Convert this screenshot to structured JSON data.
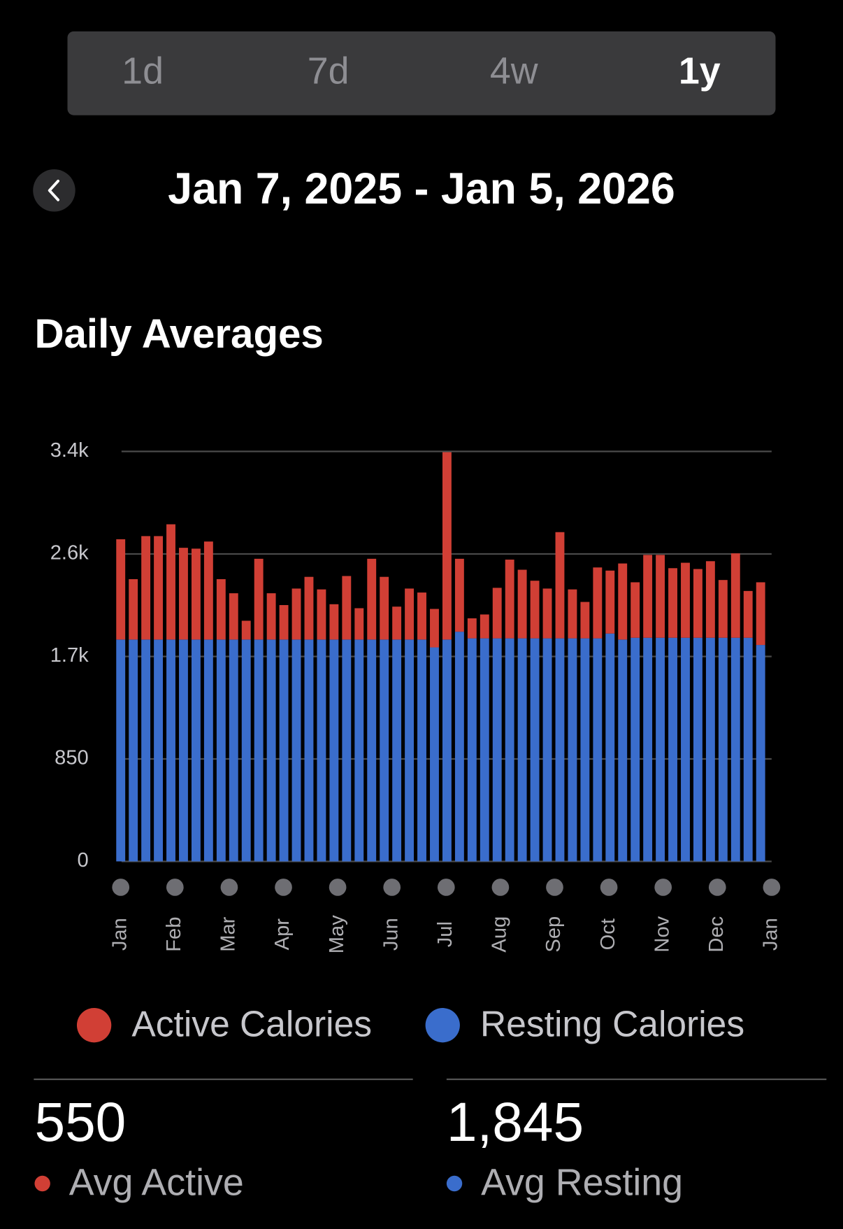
{
  "tabs": {
    "items": [
      "1d",
      "7d",
      "4w",
      "1y"
    ],
    "selected": "1y"
  },
  "header": {
    "date_range": "Jan 7, 2025 - Jan 5, 2026"
  },
  "chart_data": {
    "type": "stacked_bar",
    "title": "Daily Averages",
    "x_labels": [
      "Jan",
      "Feb",
      "Mar",
      "Apr",
      "May",
      "Jun",
      "Jul",
      "Aug",
      "Sep",
      "Oct",
      "Nov",
      "Dec",
      "Jan"
    ],
    "series": [
      {
        "name": "Active Calories",
        "color": "#d13f35",
        "values": [
          832,
          501,
          858,
          858,
          956,
          761,
          754,
          813,
          501,
          384,
          156,
          670,
          384,
          286,
          423,
          520,
          416,
          293,
          527,
          260,
          670,
          520,
          273,
          423,
          390,
          319,
          1554,
          605,
          166,
          198,
          419,
          653,
          569,
          478,
          413,
          881,
          406,
          302,
          588,
          522,
          631,
          460,
          687,
          687,
          577,
          622,
          570,
          635,
          479,
          700,
          388,
          520
        ]
      },
      {
        "name": "Resting Calories",
        "color": "#3a6dcc",
        "values": [
          1840,
          1840,
          1840,
          1840,
          1840,
          1840,
          1840,
          1840,
          1840,
          1840,
          1840,
          1840,
          1840,
          1840,
          1840,
          1840,
          1840,
          1840,
          1840,
          1840,
          1840,
          1840,
          1840,
          1840,
          1840,
          1775,
          1840,
          1905,
          1850,
          1850,
          1850,
          1850,
          1850,
          1850,
          1850,
          1850,
          1850,
          1850,
          1850,
          1890,
          1840,
          1855,
          1855,
          1855,
          1855,
          1855,
          1855,
          1855,
          1855,
          1855,
          1855,
          1795
        ]
      }
    ],
    "ylim": [
      0,
      3400
    ],
    "yticks": [
      0,
      850,
      {
        "value": 1700,
        "label": "1.7k"
      },
      {
        "value": 2550,
        "label": "2.6k"
      },
      {
        "value": 3400,
        "label": "3.4k"
      }
    ],
    "grid": true
  },
  "stats": [
    {
      "value": "550",
      "label": "Avg Active"
    },
    {
      "value": "1,845",
      "label": "Avg Resting"
    }
  ]
}
